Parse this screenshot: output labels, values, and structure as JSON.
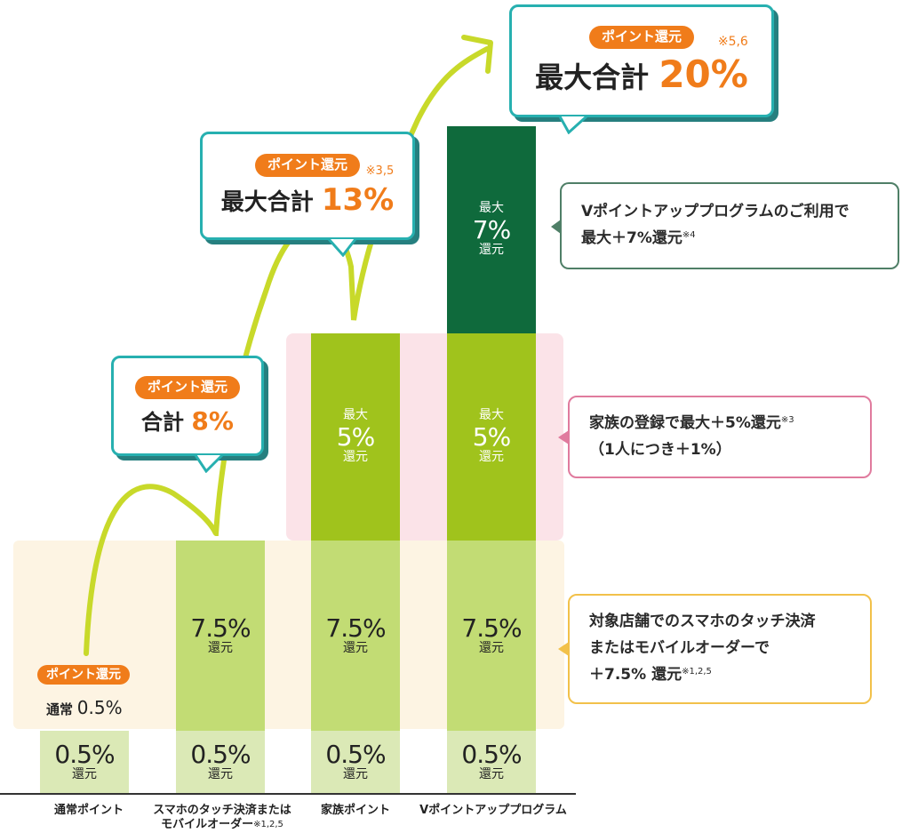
{
  "chart_data": {
    "type": "bar",
    "stacked": true,
    "categories": [
      "通常ポイント",
      "スマホのタッチ決済または\nモバイルオーダー※1,2,5",
      "家族ポイント",
      "Vポイントアッププログラム"
    ],
    "series": [
      {
        "values": [
          0.5,
          0.5,
          0.5,
          0.5
        ],
        "label_top": "0.5%",
        "label_bottom": "還元",
        "color": "#dbe9b6"
      },
      {
        "values": [
          0,
          7.5,
          7.5,
          7.5
        ],
        "label_top": "7.5%",
        "label_bottom": "還元",
        "color": "#c2dc74"
      },
      {
        "values": [
          0,
          0,
          5,
          5
        ],
        "label_pre": "最大",
        "label_top": "5%",
        "label_bottom": "還元",
        "color": "#a0c31c"
      },
      {
        "values": [
          0,
          0,
          0,
          7
        ],
        "label_pre": "最大",
        "label_top": "7%",
        "label_bottom": "還元",
        "color": "#0f6a3c"
      }
    ],
    "totals": [
      0.5,
      8,
      13,
      20
    ]
  },
  "bubbles": [
    {
      "pill": "ポイント還元",
      "prefix": "合計",
      "value": "8%",
      "note": ""
    },
    {
      "pill": "ポイント還元",
      "prefix": "最大合計",
      "value": "13%",
      "note": "※3,5"
    },
    {
      "pill": "ポイント還元",
      "prefix": "最大合計",
      "value": "20%",
      "note": "※5,6"
    }
  ],
  "normal": {
    "pill": "ポイント還元",
    "label": "通常",
    "value": "0.5%"
  },
  "callouts": {
    "vpoint": {
      "line1": "Vポイントアッププログラムのご利用で",
      "line2": "最大＋7%還元",
      "note": "※4"
    },
    "family": {
      "line1": "家族の登録で最大＋5%還元",
      "note": "※3",
      "line2": "（1人につき＋1%）"
    },
    "touch": {
      "line1": "対象店舗でのスマホのタッチ決済",
      "line2": "またはモバイルオーダーで",
      "line3": "＋7.5% 還元",
      "note": "※1,2,5"
    }
  },
  "categories_display": {
    "c1": "通常ポイント",
    "c2_line1": "スマホのタッチ決済または",
    "c2_line2": "モバイルオーダー",
    "c2_note": "※1,2,5",
    "c3": "家族ポイント",
    "c4": "Vポイントアッププログラム"
  },
  "colors": {
    "accent_orange": "#f07c1a",
    "teal_border": "#27b0b0",
    "arrow_green": "#c8d92a",
    "dark_green": "#0f6a3c",
    "mid_green": "#a0c31c",
    "light_green": "#c2dc74",
    "pale_green": "#dbe9b6"
  }
}
